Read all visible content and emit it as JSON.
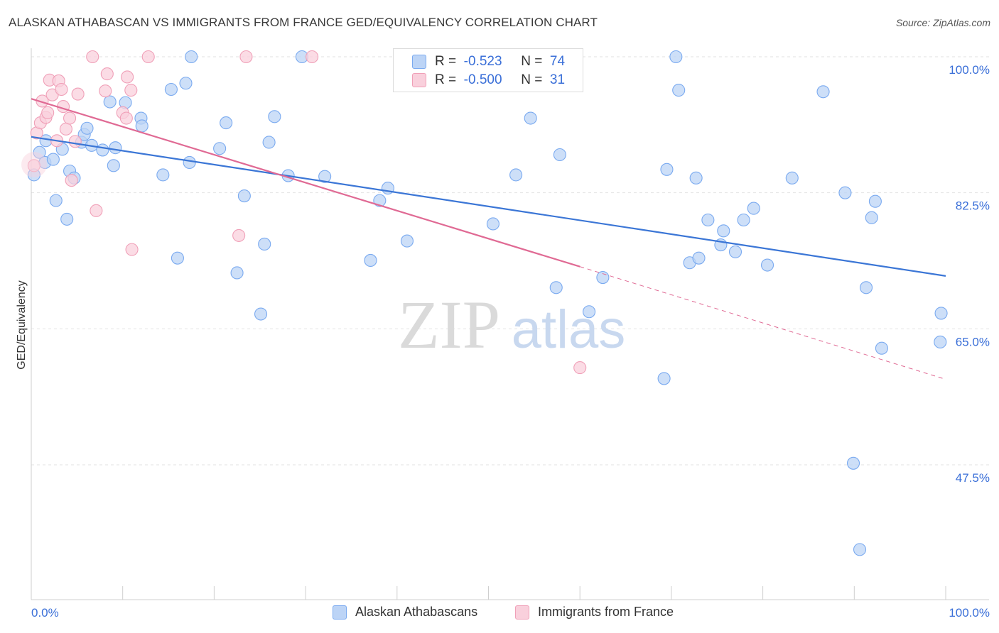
{
  "title": "ALASKAN ATHABASCAN VS IMMIGRANTS FROM FRANCE GED/EQUIVALENCY CORRELATION CHART",
  "source": "Source: ZipAtlas.com",
  "watermark": {
    "zip": "ZIP",
    "atlas": "atlas"
  },
  "stats": [
    {
      "r_label": "R =",
      "r_value": "-0.523",
      "n_label": "N =",
      "n_value": "74",
      "color": "#7aaaf0",
      "fill": "#bcd4f6"
    },
    {
      "r_label": "R =",
      "r_value": "-0.500",
      "n_label": "N =",
      "n_value": "31",
      "color": "#f0a0b8",
      "fill": "#f9d0dc"
    }
  ],
  "legend": [
    {
      "label": "Alaskan Athabascans",
      "color": "#7aaaf0",
      "fill": "#bcd4f6"
    },
    {
      "label": "Immigrants from France",
      "color": "#f0a0b8",
      "fill": "#f9d0dc"
    }
  ],
  "chart_data": {
    "type": "scatter",
    "ylabel": "GED/Equivalency",
    "xlim": [
      0,
      100
    ],
    "ylim": [
      30,
      101.5
    ],
    "x_tick_labels": [
      "0.0%",
      "100.0%"
    ],
    "y_tick_values": [
      47.5,
      65.0,
      82.5,
      100.0
    ],
    "y_tick_labels": [
      "47.5%",
      "65.0%",
      "82.5%",
      "100.0%"
    ],
    "grid": true,
    "series": [
      {
        "name": "Alaskan Athabascans",
        "color": "#3b76d6",
        "fill": "#bcd4f6",
        "stroke": "#7aaaf0",
        "trend": {
          "x0": 0,
          "y0": 89.7,
          "x1": 100,
          "y1": 71.8
        },
        "points": [
          [
            0.3,
            84.8
          ],
          [
            0.9,
            87.7
          ],
          [
            1.6,
            89.2
          ],
          [
            1.5,
            86.4
          ],
          [
            2.4,
            86.8
          ],
          [
            2.7,
            81.5
          ],
          [
            3.4,
            88.1
          ],
          [
            3.9,
            79.1
          ],
          [
            4.2,
            85.3
          ],
          [
            4.7,
            84.4
          ],
          [
            5.5,
            89.0
          ],
          [
            5.8,
            90.0
          ],
          [
            6.1,
            90.8
          ],
          [
            6.6,
            88.6
          ],
          [
            7.8,
            88.0
          ],
          [
            8.6,
            94.2
          ],
          [
            9.0,
            86.0
          ],
          [
            9.2,
            88.3
          ],
          [
            10.3,
            94.1
          ],
          [
            12.0,
            92.1
          ],
          [
            12.1,
            91.1
          ],
          [
            14.4,
            84.8
          ],
          [
            15.3,
            95.8
          ],
          [
            16.0,
            74.1
          ],
          [
            16.9,
            96.6
          ],
          [
            17.3,
            86.4
          ],
          [
            17.5,
            100.0
          ],
          [
            20.6,
            88.2
          ],
          [
            21.3,
            91.5
          ],
          [
            22.5,
            72.2
          ],
          [
            23.3,
            82.1
          ],
          [
            25.1,
            66.9
          ],
          [
            25.5,
            75.9
          ],
          [
            26.0,
            89.0
          ],
          [
            26.6,
            92.3
          ],
          [
            28.1,
            84.7
          ],
          [
            29.6,
            100.0
          ],
          [
            32.1,
            84.6
          ],
          [
            37.1,
            73.8
          ],
          [
            38.1,
            81.5
          ],
          [
            39.0,
            83.1
          ],
          [
            41.1,
            76.3
          ],
          [
            50.5,
            78.5
          ],
          [
            53.0,
            84.8
          ],
          [
            54.6,
            92.1
          ],
          [
            57.4,
            70.3
          ],
          [
            57.8,
            87.4
          ],
          [
            61.0,
            67.2
          ],
          [
            62.5,
            71.6
          ],
          [
            69.2,
            58.6
          ],
          [
            69.5,
            85.5
          ],
          [
            70.5,
            100.0
          ],
          [
            70.8,
            95.7
          ],
          [
            72.0,
            73.5
          ],
          [
            72.7,
            84.4
          ],
          [
            73.0,
            74.1
          ],
          [
            74.0,
            79.0
          ],
          [
            75.4,
            75.8
          ],
          [
            75.7,
            77.6
          ],
          [
            77.0,
            74.9
          ],
          [
            77.9,
            79.0
          ],
          [
            79.0,
            80.5
          ],
          [
            80.5,
            73.2
          ],
          [
            83.2,
            84.4
          ],
          [
            86.6,
            95.5
          ],
          [
            89.0,
            82.5
          ],
          [
            89.9,
            47.7
          ],
          [
            90.6,
            36.6
          ],
          [
            91.3,
            70.3
          ],
          [
            91.9,
            79.3
          ],
          [
            92.3,
            81.4
          ],
          [
            93.0,
            62.5
          ],
          [
            99.4,
            63.3
          ],
          [
            99.5,
            67.0
          ]
        ]
      },
      {
        "name": "Immigrants from France",
        "color": "#e06a94",
        "fill": "#f9d0dc",
        "stroke": "#f0a0b8",
        "trend": {
          "x0": 0,
          "y0": 94.6,
          "x1": 60,
          "y1": 73.0,
          "dash_x1": 100,
          "dash_y1": 58.5
        },
        "points": [
          [
            0.3,
            86.0
          ],
          [
            0.6,
            90.2
          ],
          [
            1.0,
            91.5
          ],
          [
            1.2,
            94.3
          ],
          [
            1.6,
            92.2
          ],
          [
            1.8,
            92.8
          ],
          [
            2.0,
            97.0
          ],
          [
            2.3,
            95.1
          ],
          [
            2.8,
            89.2
          ],
          [
            3.0,
            96.9
          ],
          [
            3.3,
            95.8
          ],
          [
            3.5,
            93.6
          ],
          [
            3.8,
            90.7
          ],
          [
            4.2,
            92.1
          ],
          [
            4.4,
            84.1
          ],
          [
            4.8,
            89.1
          ],
          [
            5.1,
            95.2
          ],
          [
            6.7,
            100.0
          ],
          [
            7.1,
            80.2
          ],
          [
            8.1,
            95.6
          ],
          [
            8.3,
            97.8
          ],
          [
            10.0,
            92.8
          ],
          [
            10.4,
            92.1
          ],
          [
            10.5,
            97.4
          ],
          [
            10.9,
            95.7
          ],
          [
            11.0,
            75.2
          ],
          [
            12.8,
            100.0
          ],
          [
            22.7,
            77.0
          ],
          [
            23.5,
            100.0
          ],
          [
            30.7,
            100.0
          ],
          [
            60.0,
            60.0
          ]
        ]
      }
    ]
  }
}
